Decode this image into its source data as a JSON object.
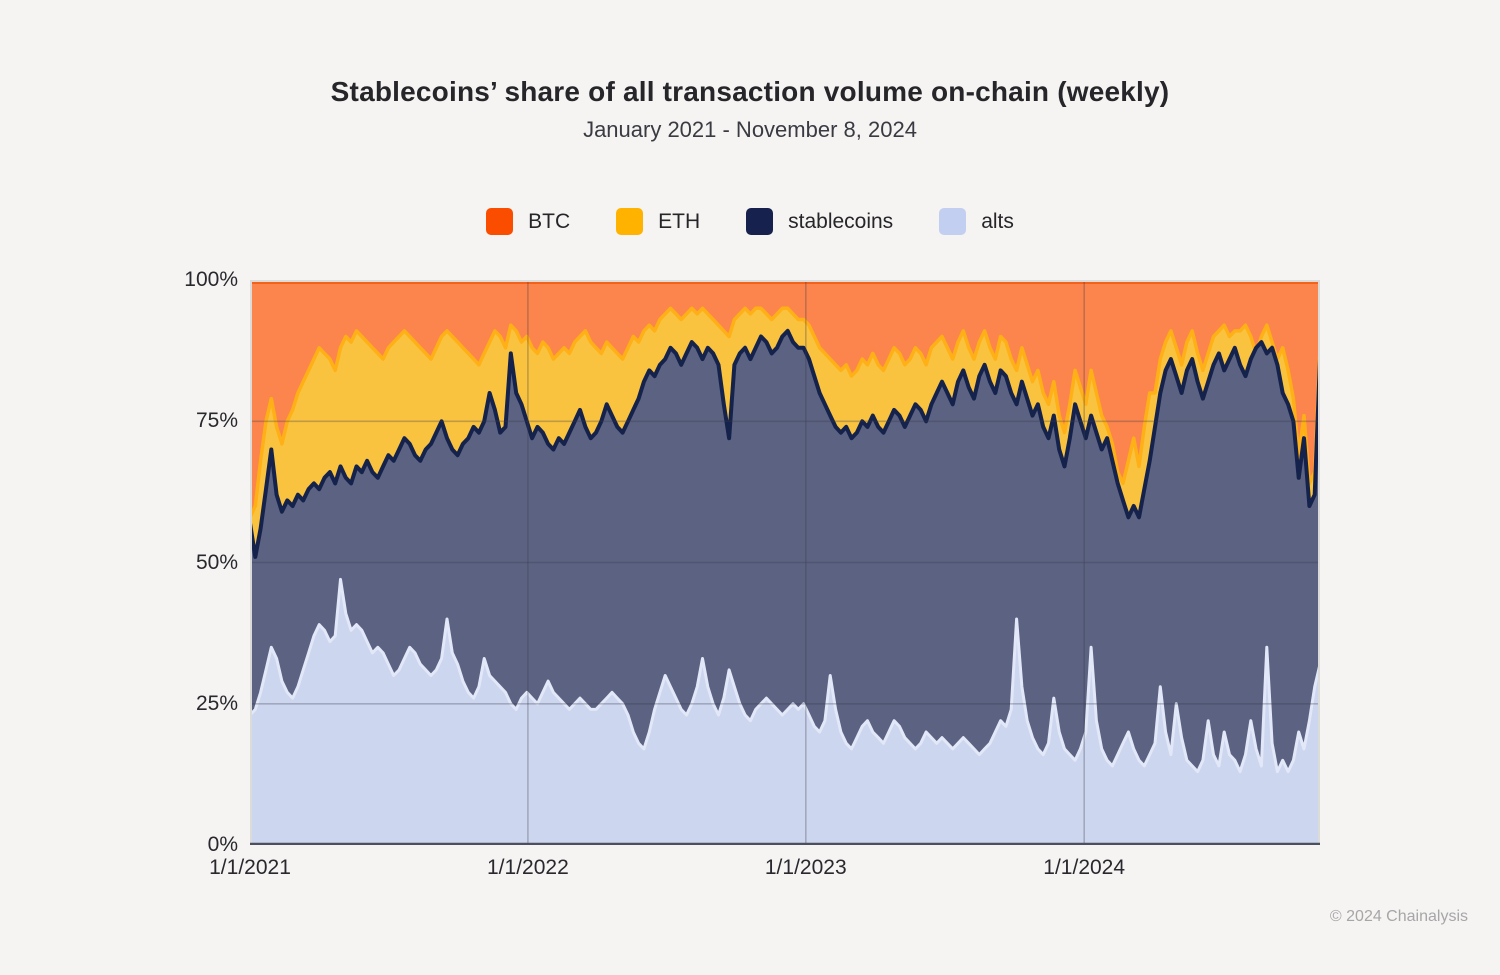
{
  "page": {
    "background": "#F5F4F2"
  },
  "header": {
    "title": "Stablecoins’ share of all transaction volume on-chain (weekly)",
    "subtitle": "January 2021 - November 8, 2024"
  },
  "legend": {
    "items": [
      {
        "label": "BTC",
        "color": "#FA4D00"
      },
      {
        "label": "ETH",
        "color": "#FFB300"
      },
      {
        "label": "stablecoins",
        "color": "#16224D"
      },
      {
        "label": "alts",
        "color": "#C3CFF0"
      }
    ]
  },
  "footer": {
    "copyright": "© 2024 Chainalysis"
  },
  "chart_data": {
    "type": "area",
    "stacked": true,
    "title": "Stablecoins’ share of all transaction volume on-chain (weekly)",
    "subtitle": "January 2021 - November 8, 2024",
    "units": "percent of all weekly on-chain transaction volume",
    "x_start": "1/1/2021",
    "x_end": "11/8/2024",
    "x_points_weekly": 202,
    "ylim": [
      0,
      100
    ],
    "grid": {
      "color": "rgba(58,60,74,0.30)",
      "horizontal_at": [
        25,
        50,
        75
      ]
    },
    "x_ticks": [
      {
        "label": "1/1/2021",
        "week": 0
      },
      {
        "label": "1/1/2022",
        "week": 52.2
      },
      {
        "label": "1/1/2023",
        "week": 104.4
      },
      {
        "label": "1/1/2024",
        "week": 156.7
      }
    ],
    "y_ticks": [
      {
        "label": "0%",
        "pct": 0
      },
      {
        "label": "25%",
        "pct": 25
      },
      {
        "label": "50%",
        "pct": 50
      },
      {
        "label": "75%",
        "pct": 75
      },
      {
        "label": "100%",
        "pct": 100
      }
    ],
    "values_are": "cumulative stacked percent — each series' top boundary in the stack (alts bottom, then stablecoins, ETH, BTC to 100)",
    "series": [
      {
        "name": "alts",
        "fill": "#CDD6EF",
        "stroke": "#E2E8F8",
        "cum": [
          23,
          24,
          27,
          31,
          35,
          33,
          29,
          27,
          26,
          28,
          31,
          34,
          37,
          39,
          38,
          36,
          37,
          47,
          41,
          38,
          39,
          38,
          36,
          34,
          35,
          34,
          32,
          30,
          31,
          33,
          35,
          34,
          32,
          31,
          30,
          31,
          33,
          40,
          34,
          32,
          29,
          27,
          26,
          28,
          33,
          30,
          29,
          28,
          27,
          25,
          24,
          26,
          27,
          26,
          25,
          27,
          29,
          27,
          26,
          25,
          24,
          25,
          26,
          25,
          24,
          24,
          25,
          26,
          27,
          26,
          25,
          23,
          20,
          18,
          17,
          20,
          24,
          27,
          30,
          28,
          26,
          24,
          23,
          25,
          28,
          33,
          28,
          25,
          23,
          26,
          31,
          28,
          25,
          23,
          22,
          24,
          25,
          26,
          25,
          24,
          23,
          24,
          25,
          24,
          25,
          23,
          21,
          20,
          22,
          30,
          24,
          20,
          18,
          17,
          19,
          21,
          22,
          20,
          19,
          18,
          20,
          22,
          21,
          19,
          18,
          17,
          18,
          20,
          19,
          18,
          19,
          18,
          17,
          18,
          19,
          18,
          17,
          16,
          17,
          18,
          20,
          22,
          21,
          24,
          40,
          28,
          22,
          19,
          17,
          16,
          18,
          26,
          20,
          17,
          16,
          15,
          17,
          20,
          35,
          22,
          17,
          15,
          14,
          16,
          18,
          20,
          17,
          15,
          14,
          16,
          18,
          28,
          20,
          16,
          25,
          19,
          15,
          14,
          13,
          15,
          22,
          16,
          14,
          20,
          16,
          15,
          13,
          16,
          22,
          17,
          14,
          35,
          18,
          13,
          15,
          13,
          15,
          20,
          17,
          22,
          28,
          32
        ]
      },
      {
        "name": "stablecoins",
        "fill": "#5B6282",
        "stroke": "#15224B",
        "cum": [
          57,
          51,
          56,
          63,
          70,
          62,
          59,
          61,
          60,
          62,
          61,
          63,
          64,
          63,
          65,
          66,
          64,
          67,
          65,
          64,
          67,
          66,
          68,
          66,
          65,
          67,
          69,
          68,
          70,
          72,
          71,
          69,
          68,
          70,
          71,
          73,
          75,
          72,
          70,
          69,
          71,
          72,
          74,
          73,
          75,
          80,
          77,
          73,
          74,
          87,
          80,
          78,
          75,
          72,
          74,
          73,
          71,
          70,
          72,
          71,
          73,
          75,
          77,
          74,
          72,
          73,
          75,
          78,
          76,
          74,
          73,
          75,
          77,
          79,
          82,
          84,
          83,
          85,
          86,
          88,
          87,
          85,
          87,
          89,
          88,
          86,
          88,
          87,
          85,
          78,
          72,
          85,
          87,
          88,
          86,
          88,
          90,
          89,
          87,
          88,
          90,
          91,
          89,
          88,
          88,
          86,
          83,
          80,
          78,
          76,
          74,
          73,
          74,
          72,
          73,
          75,
          74,
          76,
          74,
          73,
          75,
          77,
          76,
          74,
          76,
          78,
          77,
          75,
          78,
          80,
          82,
          80,
          78,
          82,
          84,
          81,
          79,
          83,
          85,
          82,
          80,
          84,
          83,
          80,
          78,
          82,
          79,
          76,
          78,
          74,
          72,
          76,
          70,
          67,
          72,
          78,
          75,
          72,
          76,
          73,
          70,
          72,
          68,
          64,
          61,
          58,
          60,
          58,
          63,
          68,
          74,
          80,
          84,
          86,
          83,
          80,
          84,
          86,
          82,
          79,
          82,
          85,
          87,
          84,
          86,
          88,
          85,
          83,
          86,
          88,
          89,
          87,
          88,
          85,
          80,
          78,
          75,
          65,
          72,
          60,
          62,
          86
        ]
      },
      {
        "name": "ETH",
        "fill": "#F9C340",
        "stroke": "#FFB017",
        "cum": [
          58,
          60,
          68,
          75,
          79,
          74,
          71,
          75,
          77,
          80,
          82,
          84,
          86,
          88,
          87,
          86,
          84,
          88,
          90,
          89,
          91,
          90,
          89,
          88,
          87,
          86,
          88,
          89,
          90,
          91,
          90,
          89,
          88,
          87,
          86,
          88,
          90,
          91,
          90,
          89,
          88,
          87,
          86,
          85,
          87,
          89,
          91,
          90,
          88,
          92,
          91,
          89,
          90,
          88,
          87,
          89,
          88,
          86,
          87,
          88,
          87,
          89,
          90,
          91,
          89,
          88,
          87,
          89,
          88,
          87,
          86,
          88,
          90,
          89,
          91,
          92,
          91,
          93,
          94,
          95,
          94,
          93,
          94,
          95,
          94,
          95,
          94,
          93,
          92,
          91,
          90,
          93,
          94,
          95,
          94,
          95,
          95,
          94,
          93,
          94,
          95,
          95,
          94,
          93,
          93,
          92,
          90,
          88,
          87,
          86,
          85,
          84,
          85,
          83,
          84,
          86,
          85,
          87,
          85,
          84,
          86,
          88,
          87,
          85,
          86,
          88,
          87,
          85,
          88,
          89,
          90,
          88,
          86,
          89,
          91,
          88,
          86,
          89,
          91,
          88,
          86,
          90,
          89,
          86,
          84,
          88,
          85,
          82,
          84,
          80,
          78,
          82,
          76,
          73,
          78,
          84,
          81,
          78,
          84,
          80,
          76,
          74,
          71,
          66,
          64,
          68,
          72,
          67,
          74,
          80,
          80,
          86,
          89,
          91,
          88,
          85,
          89,
          91,
          87,
          84,
          87,
          90,
          91,
          92,
          90,
          91,
          91,
          92,
          90,
          87,
          90,
          92,
          89,
          86,
          88,
          84,
          79,
          69,
          76,
          64,
          66,
          88
        ]
      },
      {
        "name": "BTC",
        "fill": "#FB854C",
        "stroke": "#F4611B",
        "cum": 100
      }
    ]
  }
}
